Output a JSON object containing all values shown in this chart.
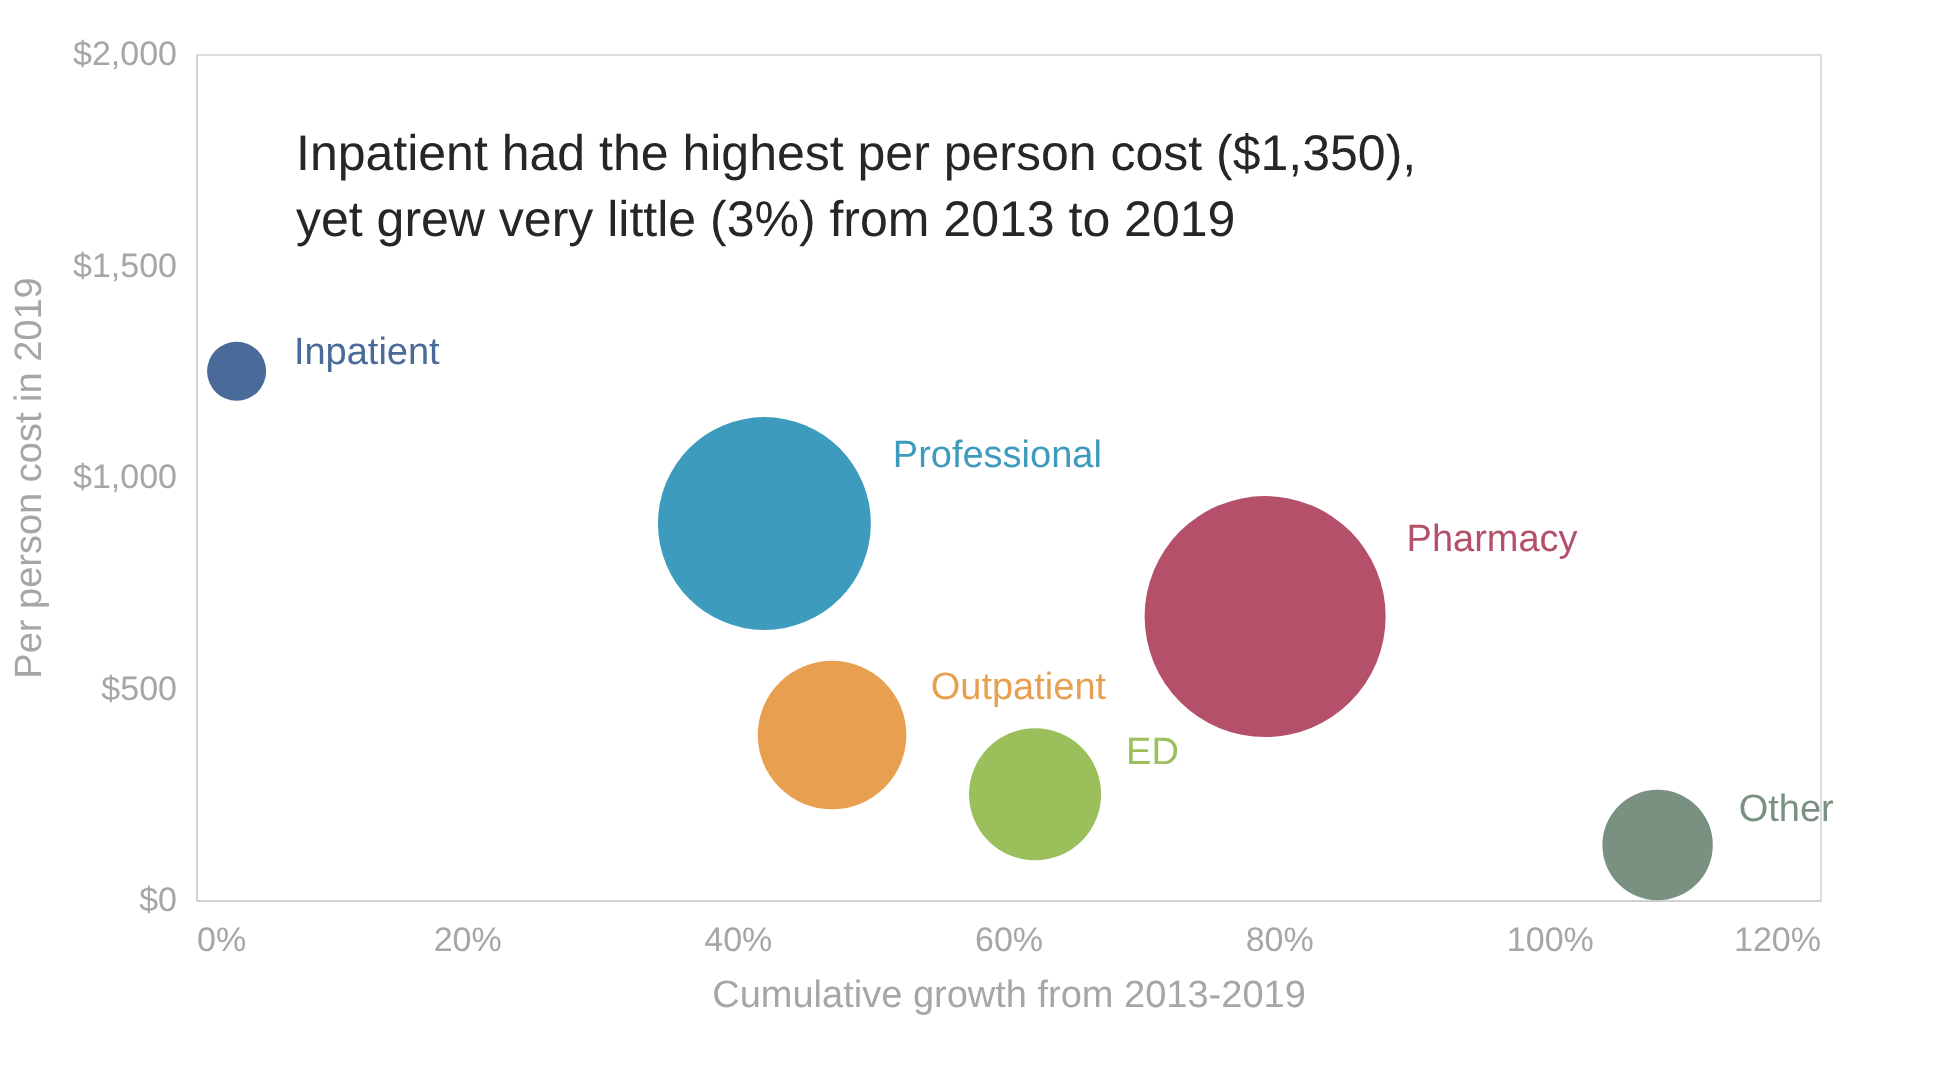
{
  "chart_data": {
    "type": "bubble",
    "xlabel": "Cumulative growth from 2013-2019",
    "ylabel": "Per person cost in 2019",
    "annotations": [
      "Inpatient had the highest per person cost ($1,350), yet grew very little (3%) from 2013 to 2019"
    ],
    "series": [
      {
        "name": "Inpatient",
        "color": "#4a6a9a",
        "x": [
          3
        ],
        "values": [
          1250
        ],
        "sizes": [
          0.06
        ]
      },
      {
        "name": "Professional",
        "color": "#3d9bbd",
        "x": [
          42
        ],
        "values": [
          890
        ],
        "sizes": [
          0.78
        ]
      },
      {
        "name": "Outpatient",
        "color": "#e8a050",
        "x": [
          47
        ],
        "values": [
          390
        ],
        "sizes": [
          0.38
        ]
      },
      {
        "name": "ED",
        "color": "#9bbf5a",
        "x": [
          62
        ],
        "values": [
          250
        ],
        "sizes": [
          0.3
        ]
      },
      {
        "name": "Pharmacy",
        "color": "#b5506a",
        "x": [
          79
        ],
        "values": [
          670
        ],
        "sizes": [
          1
        ]
      },
      {
        "name": "Other",
        "color": "#7a9080",
        "x": [
          108
        ],
        "values": [
          130
        ],
        "sizes": [
          0.21
        ]
      }
    ],
    "xlim": [
      0,
      120
    ],
    "xticks": [
      {
        "value": 0,
        "label": "0%"
      },
      {
        "value": 20,
        "label": "20%"
      },
      {
        "value": 40,
        "label": "40%"
      },
      {
        "value": 60,
        "label": "60%"
      },
      {
        "value": 80,
        "label": "80%"
      },
      {
        "value": 100,
        "label": "100%"
      },
      {
        "value": 120,
        "label": "120%"
      }
    ],
    "ylim": [
      0,
      2000
    ],
    "yticks": [
      {
        "value": 0,
        "label": "$0"
      },
      {
        "value": 500,
        "label": "$500"
      },
      {
        "value": 1000,
        "label": "$1,000"
      },
      {
        "value": 1500,
        "label": "$1,500"
      },
      {
        "value": 2000,
        "label": "$2,000"
      }
    ],
    "grid": false,
    "legend": false
  }
}
